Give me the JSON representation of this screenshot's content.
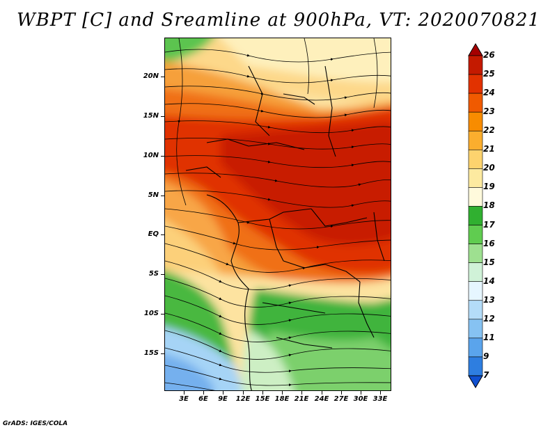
{
  "title": "WBPT [C] and Sreamline at 900hPa, VT: 2020070821",
  "credit": "GrADS: IGES/COLA",
  "lat_labels": [
    "20N",
    "15N",
    "10N",
    "5N",
    "EQ",
    "5S",
    "10S",
    "15S"
  ],
  "lon_labels": [
    "3E",
    "6E",
    "9E",
    "12E",
    "15E",
    "18E",
    "21E",
    "24E",
    "27E",
    "30E",
    "33E"
  ],
  "colorbar": {
    "labels": [
      "26",
      "25",
      "24",
      "23",
      "22",
      "21",
      "20",
      "19",
      "18",
      "17",
      "16",
      "15",
      "14",
      "13",
      "12",
      "11",
      "9",
      "7"
    ],
    "colors": [
      "#a50000",
      "#c41a00",
      "#e23200",
      "#f05a00",
      "#f88c00",
      "#fbae2e",
      "#fdd36e",
      "#fdeaa0",
      "#fffadc",
      "#30b030",
      "#60cc50",
      "#9ee090",
      "#d0f2d8",
      "#e6f6ff",
      "#b4dcf8",
      "#86c2f2",
      "#5aa4ec",
      "#2e7ee0",
      "#1050d0"
    ]
  },
  "colors": {
    "deep_red": "#d42200",
    "red": "#e63a00",
    "orange": "#f27a10",
    "light_orange": "#f8a840",
    "tan": "#fcd882",
    "cream": "#fef0b8",
    "green": "#3cb43c",
    "light_green": "#8ed87a",
    "pale_green": "#cdefc4",
    "light_blue": "#a6d4f6",
    "blue": "#74b0ee"
  }
}
